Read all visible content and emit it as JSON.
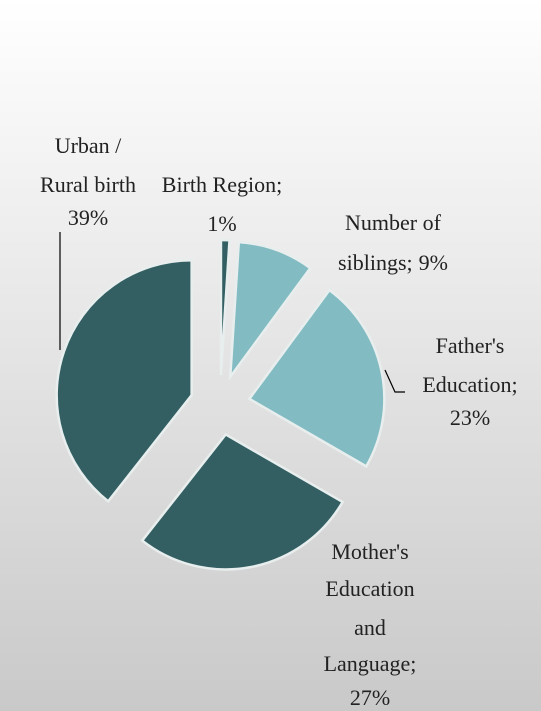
{
  "chart_data": {
    "type": "pie",
    "categories": [
      [
        "Birth Region;"
      ],
      [
        "Number of",
        "siblings;"
      ],
      [
        "Father's",
        "Education;"
      ],
      [
        "Mother's",
        "Education",
        "and",
        "Language;"
      ],
      [
        "Urban /",
        "Rural birth"
      ]
    ],
    "values": [
      1,
      9,
      23,
      27,
      39
    ],
    "value_labels": [
      "1%",
      "9%",
      "23%",
      "27%",
      "39%"
    ],
    "colors": [
      "#335f63",
      "#82bcc2",
      "#82bcc2",
      "#335f63",
      "#335f63"
    ],
    "exploded": true
  }
}
